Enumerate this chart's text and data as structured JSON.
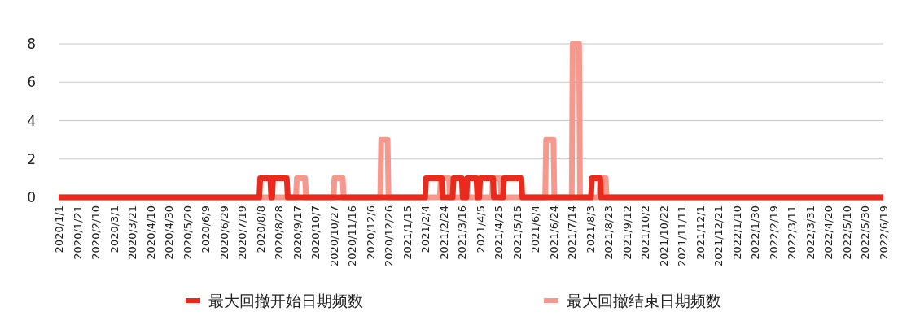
{
  "chart_data": {
    "type": "line",
    "grid": "y",
    "legend": "bottom",
    "ylim": [
      0,
      8
    ],
    "yticks": [
      0,
      2,
      4,
      6,
      8
    ],
    "xlim": [
      "2020-01-01",
      "2022-06-19"
    ],
    "xticks": [
      {
        "value": "2020-01-01",
        "label": "2020/1/1"
      },
      {
        "value": "2020-01-21",
        "label": "2020/1/21"
      },
      {
        "value": "2020-02-10",
        "label": "2020/2/10"
      },
      {
        "value": "2020-03-01",
        "label": "2020/3/1"
      },
      {
        "value": "2020-03-21",
        "label": "2020/3/21"
      },
      {
        "value": "2020-04-10",
        "label": "2020/4/10"
      },
      {
        "value": "2020-04-30",
        "label": "2020/4/30"
      },
      {
        "value": "2020-05-20",
        "label": "2020/5/20"
      },
      {
        "value": "2020-06-09",
        "label": "2020/6/9"
      },
      {
        "value": "2020-06-29",
        "label": "2020/6/29"
      },
      {
        "value": "2020-07-19",
        "label": "2020/7/19"
      },
      {
        "value": "2020-08-08",
        "label": "2020/8/8"
      },
      {
        "value": "2020-08-28",
        "label": "2020/8/28"
      },
      {
        "value": "2020-09-17",
        "label": "2020/9/17"
      },
      {
        "value": "2020-10-07",
        "label": "2020/10/7"
      },
      {
        "value": "2020-10-27",
        "label": "2020/10/27"
      },
      {
        "value": "2020-11-16",
        "label": "2020/11/16"
      },
      {
        "value": "2020-12-06",
        "label": "2020/12/6"
      },
      {
        "value": "2020-12-26",
        "label": "2020/12/26"
      },
      {
        "value": "2021-01-15",
        "label": "2021/1/15"
      },
      {
        "value": "2021-02-04",
        "label": "2021/2/4"
      },
      {
        "value": "2021-02-24",
        "label": "2021/2/24"
      },
      {
        "value": "2021-03-16",
        "label": "2021/3/16"
      },
      {
        "value": "2021-04-05",
        "label": "2021/4/5"
      },
      {
        "value": "2021-04-25",
        "label": "2021/4/25"
      },
      {
        "value": "2021-05-15",
        "label": "2021/5/15"
      },
      {
        "value": "2021-06-04",
        "label": "2021/6/4"
      },
      {
        "value": "2021-06-24",
        "label": "2021/6/24"
      },
      {
        "value": "2021-07-14",
        "label": "2021/7/14"
      },
      {
        "value": "2021-08-03",
        "label": "2021/8/3"
      },
      {
        "value": "2021-08-23",
        "label": "2021/8/23"
      },
      {
        "value": "2021-09-12",
        "label": "2021/9/12"
      },
      {
        "value": "2021-10-02",
        "label": "2021/10/2"
      },
      {
        "value": "2021-10-22",
        "label": "2021/10/22"
      },
      {
        "value": "2021-11-11",
        "label": "2021/11/11"
      },
      {
        "value": "2021-12-01",
        "label": "2021/12/1"
      },
      {
        "value": "2021-12-21",
        "label": "2021/12/21"
      },
      {
        "value": "2022-01-10",
        "label": "2022/1/10"
      },
      {
        "value": "2022-01-30",
        "label": "2022/1/30"
      },
      {
        "value": "2022-02-19",
        "label": "2022/2/19"
      },
      {
        "value": "2022-03-11",
        "label": "2022/3/11"
      },
      {
        "value": "2022-03-31",
        "label": "2022/3/31"
      },
      {
        "value": "2022-04-20",
        "label": "2022/4/20"
      },
      {
        "value": "2022-05-10",
        "label": "2022/5/10"
      },
      {
        "value": "2022-05-30",
        "label": "2022/5/30"
      },
      {
        "value": "2022-06-19",
        "label": "2022/6/19"
      }
    ],
    "series": [
      {
        "name": "最大回撤开始日期频数",
        "color": "#ec2a1c",
        "x": [
          "2020-01-01",
          "2020-08-07",
          "2020-08-08",
          "2020-08-19",
          "2020-08-20",
          "2020-08-21",
          "2020-08-22",
          "2020-09-06",
          "2020-09-07",
          "2021-02-04",
          "2021-02-05",
          "2021-02-22",
          "2021-02-23",
          "2021-03-06",
          "2021-03-07",
          "2021-03-16",
          "2021-03-17",
          "2021-03-21",
          "2021-03-22",
          "2021-04-01",
          "2021-04-02",
          "2021-04-04",
          "2021-04-05",
          "2021-04-19",
          "2021-04-20",
          "2021-04-30",
          "2021-05-01",
          "2021-05-20",
          "2021-05-21",
          "2021-08-04",
          "2021-08-05",
          "2021-08-14",
          "2021-08-15",
          "2022-06-19"
        ],
        "values": [
          0,
          0,
          1,
          1,
          0,
          0,
          1,
          1,
          0,
          0,
          1,
          1,
          0,
          0,
          1,
          1,
          0,
          0,
          1,
          1,
          0,
          0,
          1,
          1,
          0,
          0,
          1,
          1,
          0,
          0,
          1,
          1,
          0,
          0
        ]
      },
      {
        "name": "最大回撤结束日期频数",
        "color": "#f8978c",
        "x": [
          "2020-01-01",
          "2020-09-16",
          "2020-09-17",
          "2020-09-26",
          "2020-09-27",
          "2020-10-27",
          "2020-10-28",
          "2020-11-06",
          "2020-11-07",
          "2020-12-17",
          "2020-12-18",
          "2020-12-25",
          "2020-12-26",
          "2021-02-20",
          "2021-02-21",
          "2021-03-02",
          "2021-03-03",
          "2021-04-18",
          "2021-04-19",
          "2021-04-27",
          "2021-04-28",
          "2021-06-15",
          "2021-06-16",
          "2021-06-24",
          "2021-06-25",
          "2021-07-14",
          "2021-07-15",
          "2021-07-22",
          "2021-07-23",
          "2021-08-13",
          "2021-08-14",
          "2021-08-20",
          "2021-08-21",
          "2022-06-19"
        ],
        "values": [
          0,
          0,
          1,
          1,
          0,
          0,
          1,
          1,
          0,
          0,
          3,
          3,
          0,
          0,
          1,
          1,
          0,
          0,
          1,
          1,
          0,
          0,
          3,
          3,
          0,
          0,
          8,
          8,
          0,
          0,
          1,
          1,
          0,
          0
        ]
      }
    ]
  }
}
